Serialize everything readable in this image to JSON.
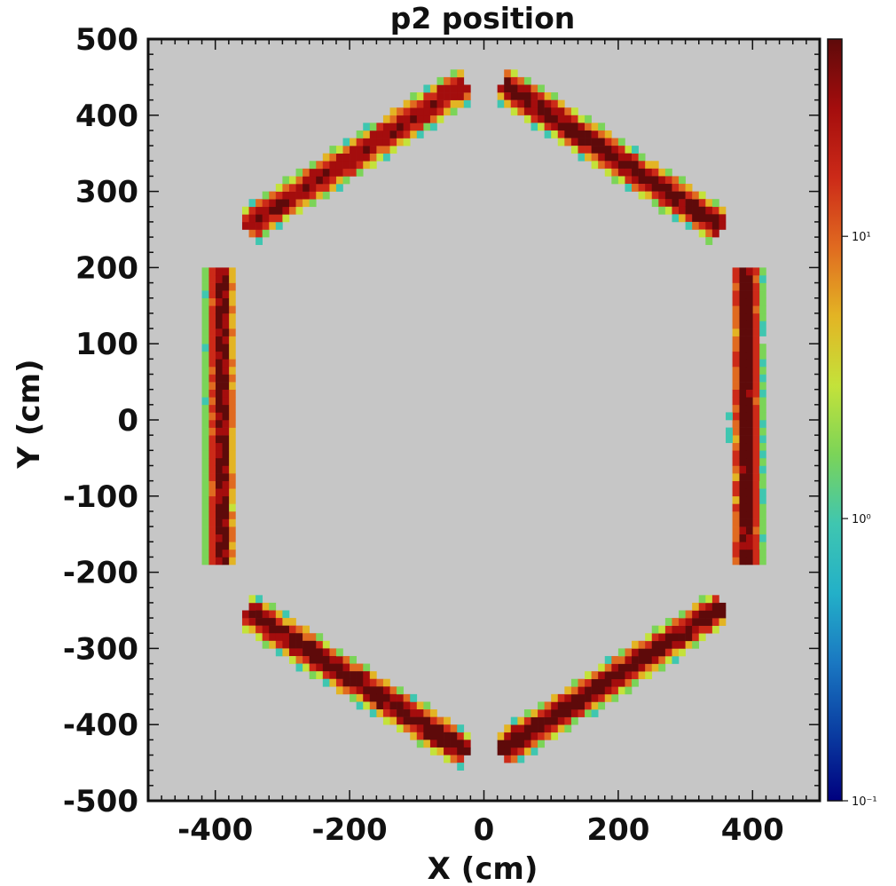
{
  "chart_data": {
    "type": "heatmap",
    "title": "p2 position",
    "xlabel": "X (cm)",
    "ylabel": "Y (cm)",
    "xlim": [
      -500,
      500
    ],
    "ylim": [
      -500,
      500
    ],
    "x_ticks": [
      -400,
      -200,
      0,
      200,
      400
    ],
    "x_tick_labels": [
      "-400",
      "-200",
      "0",
      "200",
      "400"
    ],
    "y_ticks": [
      500,
      400,
      300,
      200,
      100,
      0,
      -100,
      -200,
      -300,
      -400,
      -500
    ],
    "y_tick_labels": [
      "500",
      "400",
      "300",
      "200",
      "100",
      "0",
      "-100",
      "-200",
      "-300",
      "-400",
      "-500"
    ],
    "bin_size_cm": 10,
    "color_scale": "log",
    "color_range": [
      0.1,
      50
    ],
    "colorbar_ticks": [
      {
        "value": 10,
        "label": "10¹"
      },
      {
        "value": 1,
        "label": "10⁰"
      },
      {
        "value": 0.1,
        "label": "10⁻¹"
      }
    ],
    "background_color": "#c6c6c6",
    "colormap": [
      "#00007f",
      "#0a3ea2",
      "#1a78c2",
      "#23b0c8",
      "#3fc6b0",
      "#7bd458",
      "#c4e23a",
      "#e3b424",
      "#e06a20",
      "#cc2a18",
      "#a40d0d",
      "#5e0a0a"
    ],
    "grid": false,
    "legend": "none",
    "series": [
      {
        "segment": "top-left",
        "from": [
          -350,
          255
        ],
        "to": [
          -30,
          440
        ],
        "peak_count": 30
      },
      {
        "segment": "top-right",
        "from": [
          30,
          440
        ],
        "to": [
          350,
          255
        ],
        "peak_count": 40
      },
      {
        "segment": "left",
        "from": [
          -392,
          -190
        ],
        "to": [
          -392,
          190
        ],
        "peak_count": 35
      },
      {
        "segment": "right",
        "from": [
          390,
          -190
        ],
        "to": [
          390,
          195
        ],
        "peak_count": 45
      },
      {
        "segment": "bottom-left",
        "from": [
          -350,
          -252
        ],
        "to": [
          -30,
          -435
        ],
        "peak_count": 40
      },
      {
        "segment": "bottom-right",
        "from": [
          30,
          -432
        ],
        "to": [
          350,
          -248
        ],
        "peak_count": 40
      }
    ]
  }
}
